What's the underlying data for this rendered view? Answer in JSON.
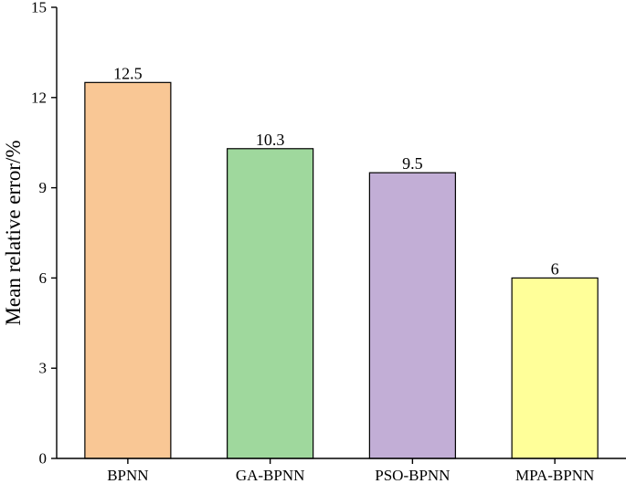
{
  "chart_data": {
    "type": "bar",
    "title": "",
    "xlabel": "",
    "ylabel": "Mean relative error/%",
    "categories": [
      "BPNN",
      "GA-BPNN",
      "PSO-BPNN",
      "MPA-BPNN"
    ],
    "values": [
      12.5,
      10.3,
      9.5,
      6
    ],
    "data_labels": [
      "12.5",
      "10.3",
      "9.5",
      "6"
    ],
    "bar_colors": [
      "#F9C795",
      "#9FD89D",
      "#C2AED6",
      "#FFFF99"
    ],
    "ylim": [
      0,
      15
    ],
    "yticks": [
      0,
      3,
      6,
      9,
      12,
      15
    ],
    "grid": false,
    "legend": "none"
  }
}
